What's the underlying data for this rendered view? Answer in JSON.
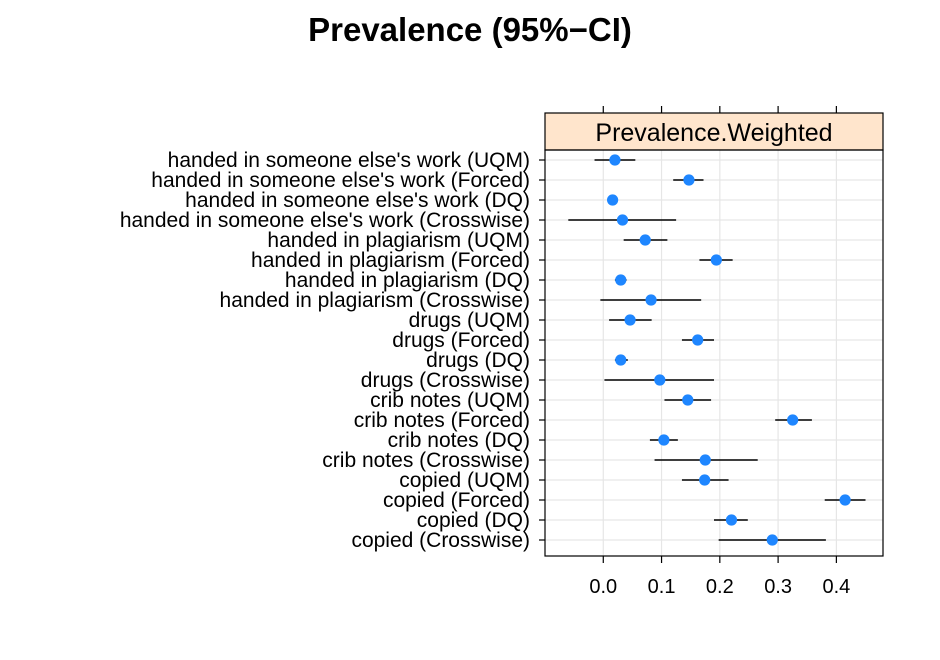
{
  "chart_data": {
    "type": "dotplot-errorbar",
    "title": "Prevalence (95%−CI)",
    "panel_label": "Prevalence.Weighted",
    "xlim": [
      -0.1,
      0.48
    ],
    "xticks": [
      "0.0",
      "0.1",
      "0.2",
      "0.3",
      "0.4"
    ],
    "xtick_values": [
      0.0,
      0.1,
      0.2,
      0.3,
      0.4
    ],
    "grid": true,
    "colors": {
      "point": "#1E86FF",
      "error_bar": "#000000",
      "grid": "#e6e6e6",
      "strip": "#FFE5CC"
    },
    "rows": [
      {
        "label": "handed in someone else's work (UQM)",
        "estimate": 0.02,
        "lower": -0.015,
        "upper": 0.055
      },
      {
        "label": "handed in someone else's work (Forced)",
        "estimate": 0.147,
        "lower": 0.12,
        "upper": 0.172
      },
      {
        "label": "handed in someone else's work (DQ)",
        "estimate": 0.016,
        "lower": 0.01,
        "upper": 0.022
      },
      {
        "label": "handed in someone else's work (Crosswise)",
        "estimate": 0.033,
        "lower": -0.06,
        "upper": 0.125
      },
      {
        "label": "handed in plagiarism (UQM)",
        "estimate": 0.072,
        "lower": 0.035,
        "upper": 0.11
      },
      {
        "label": "handed in plagiarism (Forced)",
        "estimate": 0.194,
        "lower": 0.165,
        "upper": 0.222
      },
      {
        "label": "handed in plagiarism (DQ)",
        "estimate": 0.03,
        "lower": 0.02,
        "upper": 0.04
      },
      {
        "label": "handed in plagiarism (Crosswise)",
        "estimate": 0.082,
        "lower": -0.005,
        "upper": 0.168
      },
      {
        "label": "drugs (UQM)",
        "estimate": 0.046,
        "lower": 0.01,
        "upper": 0.083
      },
      {
        "label": "drugs (Forced)",
        "estimate": 0.162,
        "lower": 0.135,
        "upper": 0.19
      },
      {
        "label": "drugs (DQ)",
        "estimate": 0.03,
        "lower": 0.02,
        "upper": 0.042
      },
      {
        "label": "drugs (Crosswise)",
        "estimate": 0.097,
        "lower": 0.002,
        "upper": 0.19
      },
      {
        "label": "crib notes (UQM)",
        "estimate": 0.145,
        "lower": 0.105,
        "upper": 0.185
      },
      {
        "label": "crib notes (Forced)",
        "estimate": 0.325,
        "lower": 0.295,
        "upper": 0.358
      },
      {
        "label": "crib notes (DQ)",
        "estimate": 0.104,
        "lower": 0.08,
        "upper": 0.128
      },
      {
        "label": "crib notes (Crosswise)",
        "estimate": 0.175,
        "lower": 0.088,
        "upper": 0.265
      },
      {
        "label": "copied (UQM)",
        "estimate": 0.174,
        "lower": 0.135,
        "upper": 0.215
      },
      {
        "label": "copied (Forced)",
        "estimate": 0.415,
        "lower": 0.38,
        "upper": 0.45
      },
      {
        "label": "copied (DQ)",
        "estimate": 0.22,
        "lower": 0.19,
        "upper": 0.248
      },
      {
        "label": "copied (Crosswise)",
        "estimate": 0.29,
        "lower": 0.198,
        "upper": 0.382
      }
    ]
  }
}
